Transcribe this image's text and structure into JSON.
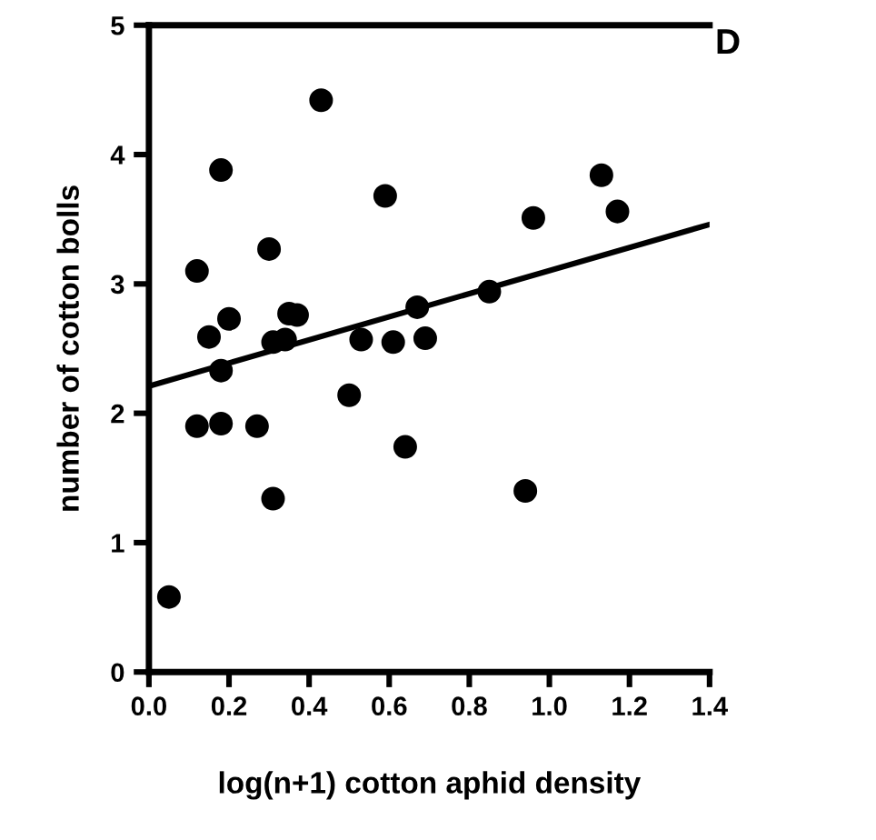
{
  "chart_data": {
    "type": "scatter",
    "xlabel": "log(n+1) cotton aphid density",
    "ylabel": "number of cotton bolls",
    "annotations": [
      "D"
    ],
    "xlim": [
      0,
      1.4
    ],
    "ylim": [
      0,
      5
    ],
    "xticks": [
      {
        "value": 0,
        "label": "0.0"
      },
      0.2,
      0.4,
      0.6,
      0.8,
      {
        "value": 1,
        "label": "1.0"
      },
      1.2,
      1.4
    ],
    "yticks": [
      0,
      1,
      2,
      3,
      4,
      5
    ],
    "grid": false,
    "legend": false,
    "marker": "circle",
    "series": [
      {
        "color": "#000000",
        "x": [
          0.43,
          0.18,
          0.59,
          0.3,
          0.12,
          0.15,
          0.2,
          0.35,
          0.37,
          0.31,
          0.34,
          0.53,
          0.61,
          1.13,
          1.17,
          0.96,
          0.85,
          0.67,
          0.69,
          0.05,
          0.18,
          0.12,
          0.18,
          0.27,
          0.31,
          0.5,
          0.64,
          0.94
        ],
        "values": [
          4.42,
          3.88,
          3.68,
          3.27,
          3.1,
          2.59,
          2.73,
          2.77,
          2.76,
          2.55,
          2.57,
          2.57,
          2.55,
          3.84,
          3.56,
          3.51,
          2.94,
          2.82,
          2.58,
          0.58,
          2.33,
          1.9,
          1.92,
          1.9,
          1.34,
          2.14,
          1.74,
          1.4
        ]
      },
      {
        "type": "line",
        "color": "#000000",
        "line_style": "solid",
        "marker": "none",
        "x": [
          0,
          1.4
        ],
        "values": [
          2.21,
          3.46
        ]
      }
    ]
  }
}
